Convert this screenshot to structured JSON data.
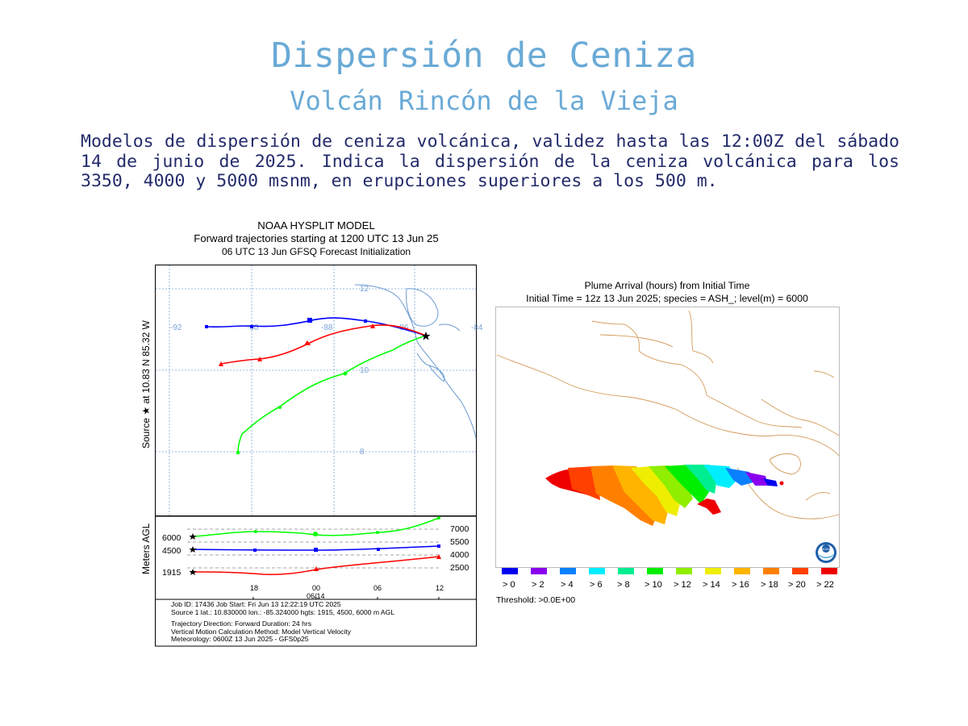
{
  "slide": {
    "title": "Dispersión de Ceniza",
    "subtitle": "Volcán Rincón de la Vieja",
    "description": "Modelos de dispersión de ceniza volcánica, validez hasta las 12:00Z del sábado 14 de junio de 2025. Indica la dispersión de la ceniza volcánica para los 3350, 4000 y 5000 msnm, en erupciones superiores a los 500 m."
  },
  "hysplit": {
    "header_line1": "NOAA HYSPLIT MODEL",
    "header_line2": "Forward trajectories starting at 1200 UTC 13 Jun 25",
    "header_line3": "06 UTC 13 Jun    GFSQ  Forecast Initialization",
    "source_label": "Source ★ at   10.83 N   85.32 W",
    "vertical_label": "Meters AGL",
    "lon_labels": [
      "-92",
      "-90",
      "-88",
      "-86",
      "-84"
    ],
    "lat_labels": [
      "12",
      "10",
      "8"
    ],
    "height_labels_left": [
      "6000",
      "4500",
      "1915"
    ],
    "height_labels_right": [
      "7000",
      "5500",
      "4000",
      "2500"
    ],
    "time_labels": [
      "18",
      "00",
      "06",
      "12"
    ],
    "date_label": "06/14",
    "trajectories": [
      {
        "name": "1915 m",
        "color": "#ff0000",
        "level_m": 1915
      },
      {
        "name": "4500 m",
        "color": "#0000ff",
        "level_m": 4500
      },
      {
        "name": "6000 m",
        "color": "#00ff00",
        "level_m": 6000
      }
    ],
    "info_line1": "Job ID: 17436              Job Start: Fri Jun 13 12:22:19 UTC 2025",
    "info_line2": "Source 1 lat.: 10.830000  lon.: -85.324000  hgts: 1915, 4500, 6000 m AGL",
    "info_line3": "Trajectory Direction: Forward      Duration: 24 hrs",
    "info_line4": "Vertical Motion Calculation Method:       Model Vertical Velocity",
    "info_line5": "Meteorology: 0600Z 13 Jun 2025 - GFS0p25"
  },
  "plume": {
    "header_line1": "Plume Arrival (hours) from Initial Time",
    "header_line2": "Initial Time = 12z 13 Jun 2025;  species = ASH_;  level(m) =  6000",
    "legend": [
      {
        "label": "> 0",
        "color": "#0000ee"
      },
      {
        "label": "> 2",
        "color": "#8a00ee"
      },
      {
        "label": "> 4",
        "color": "#0a80ff"
      },
      {
        "label": "> 6",
        "color": "#00eeff"
      },
      {
        "label": "> 8",
        "color": "#00ee90"
      },
      {
        "label": "> 10",
        "color": "#00ee00"
      },
      {
        "label": "> 12",
        "color": "#90ee00"
      },
      {
        "label": "> 14",
        "color": "#eeee00"
      },
      {
        "label": "> 16",
        "color": "#ffb400"
      },
      {
        "label": "> 18",
        "color": "#ff8000"
      },
      {
        "label": "> 20",
        "color": "#ff4000"
      },
      {
        "label": "> 22",
        "color": "#ee0000"
      }
    ],
    "threshold": "Threshold: >0.0E+00",
    "logo_text": "NOAA"
  }
}
